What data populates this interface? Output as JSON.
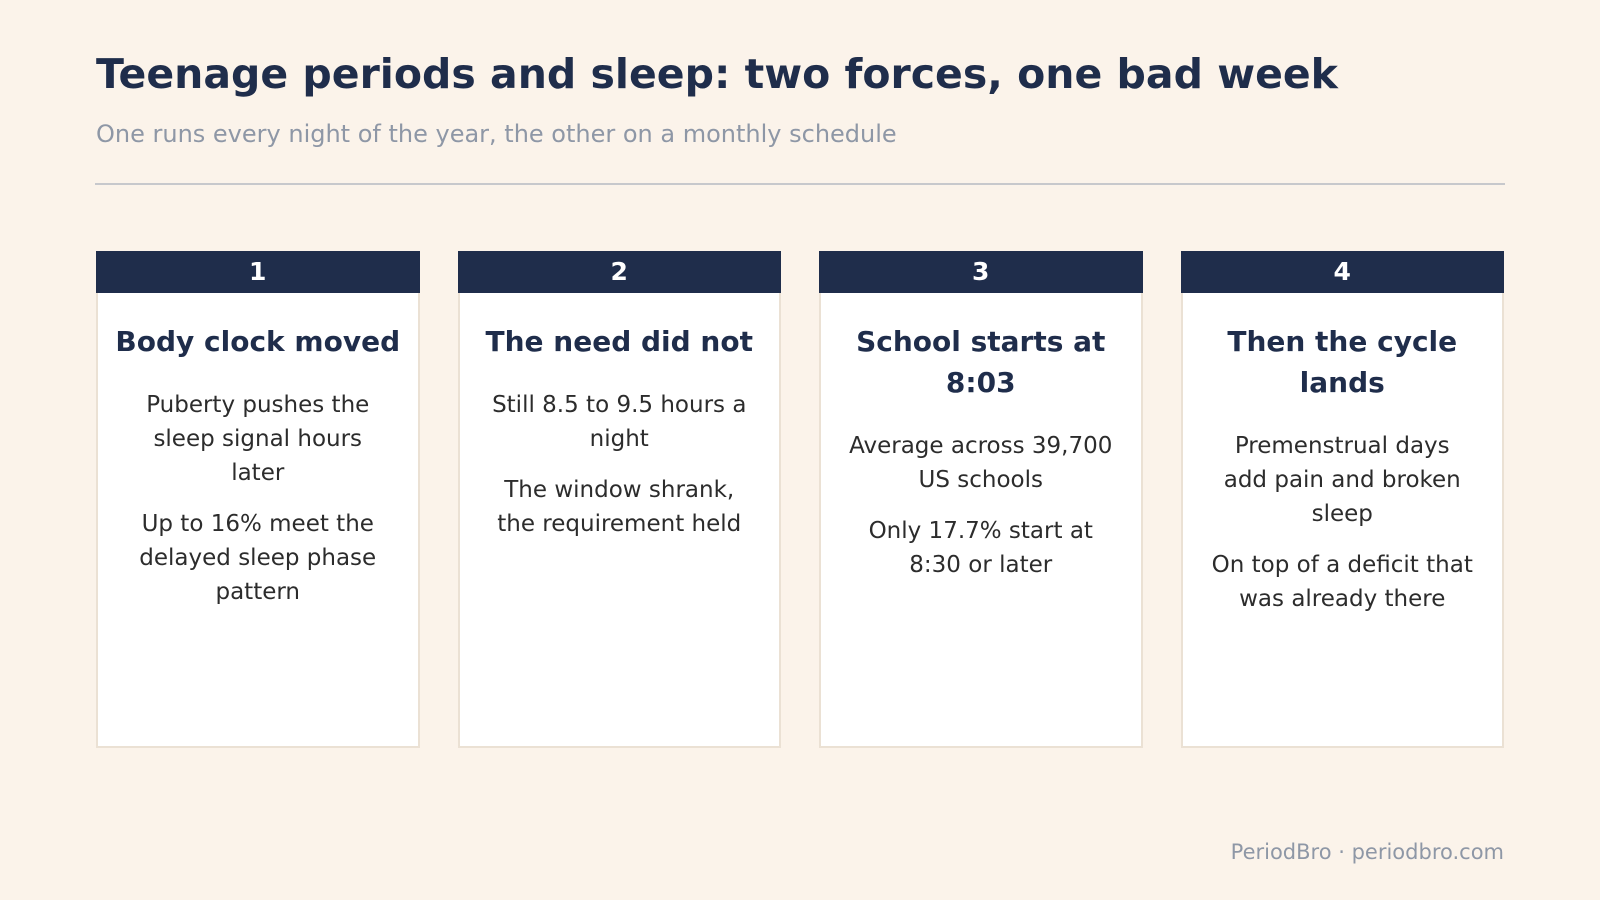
{
  "header": {
    "title": "Teenage periods and sleep: two forces, one bad week",
    "subtitle": "One runs every night of the year, the other on a monthly schedule"
  },
  "cards": [
    {
      "number": "1",
      "title": "Body clock moved",
      "lines": [
        "Puberty pushes the sleep signal hours later",
        "Up to 16% meet the delayed sleep phase pattern"
      ]
    },
    {
      "number": "2",
      "title": "The need did not",
      "lines": [
        "Still 8.5 to 9.5 hours a night",
        "The window shrank, the requirement held"
      ]
    },
    {
      "number": "3",
      "title": "School starts at 8:03",
      "lines": [
        "Average across 39,700 US schools",
        "Only 17.7% start at 8:30 or later"
      ]
    },
    {
      "number": "4",
      "title": "Then the cycle lands",
      "lines": [
        "Premenstrual days add pain and broken sleep",
        "On top of a deficit that was already there"
      ]
    }
  ],
  "footer": {
    "text": "PeriodBro · periodbro.com"
  },
  "colors": {
    "background": "#fbf3ea",
    "navy": "#1f2d4b",
    "muted": "#8e97a6"
  }
}
